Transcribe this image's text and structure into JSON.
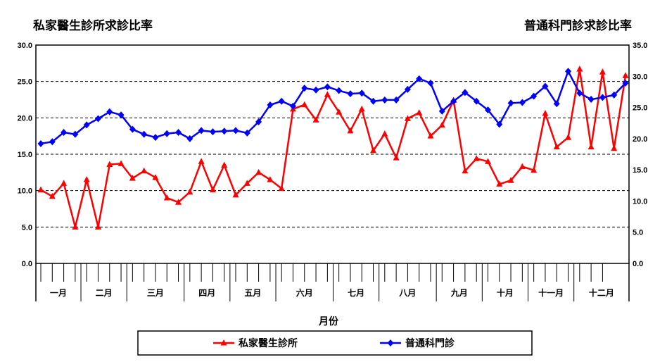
{
  "chart_data": {
    "type": "line",
    "title_left": "私家醫生診所求診比率",
    "title_right": "普通科門診求診比率",
    "xlabel": "月份",
    "left_axis": {
      "ylim": [
        0,
        30
      ],
      "ticks": [
        "0.0",
        "5.0",
        "10.0",
        "15.0",
        "20.0",
        "25.0",
        "30.0"
      ]
    },
    "right_axis": {
      "ylim": [
        0,
        35
      ],
      "ticks": [
        "0.0",
        "5.0",
        "10.0",
        "15.0",
        "20.0",
        "25.0",
        "30.0",
        "35.0"
      ]
    },
    "grid": true,
    "legend_position": "bottom",
    "months": [
      {
        "label": "一月",
        "weeks": 4
      },
      {
        "label": "二月",
        "weeks": 4
      },
      {
        "label": "三月",
        "weeks": 5
      },
      {
        "label": "四月",
        "weeks": 4
      },
      {
        "label": "五月",
        "weeks": 4
      },
      {
        "label": "六月",
        "weeks": 5
      },
      {
        "label": "七月",
        "weeks": 4
      },
      {
        "label": "八月",
        "weeks": 5
      },
      {
        "label": "九月",
        "weeks": 4
      },
      {
        "label": "十月",
        "weeks": 4
      },
      {
        "label": "十一月",
        "weeks": 4
      },
      {
        "label": "十二月",
        "weeks": 3
      }
    ],
    "series": [
      {
        "name": "私家醫生診所",
        "color": "#ff0000",
        "marker": "triangle",
        "axis": "left",
        "values": [
          10.1,
          9.2,
          11.0,
          5.0,
          11.5,
          5.0,
          13.6,
          13.7,
          11.7,
          12.7,
          11.8,
          9.0,
          8.4,
          9.8,
          14.0,
          10.1,
          13.5,
          9.4,
          11.0,
          12.5,
          11.5,
          10.3,
          21.2,
          21.8,
          19.7,
          23.2,
          20.8,
          18.2,
          21.2,
          15.5,
          17.8,
          14.5,
          19.9,
          20.7,
          17.5,
          19.0,
          22.4,
          12.7,
          14.4,
          14.0,
          10.9,
          11.4,
          13.3,
          12.8,
          20.6,
          16.0,
          17.3,
          26.7,
          16.0,
          26.3,
          15.8,
          25.8
        ]
      },
      {
        "name": "普通科門診",
        "color": "#0000ff",
        "marker": "diamond",
        "axis": "right",
        "values": [
          19.2,
          19.5,
          21.0,
          20.7,
          22.2,
          23.2,
          24.3,
          23.8,
          21.5,
          20.7,
          20.2,
          20.8,
          21.0,
          20.0,
          21.3,
          21.1,
          21.2,
          21.3,
          20.9,
          22.7,
          25.4,
          26.0,
          25.2,
          28.1,
          27.8,
          28.3,
          27.7,
          27.2,
          27.3,
          26.0,
          26.2,
          26.2,
          27.9,
          29.6,
          28.9,
          24.4,
          26.0,
          27.4,
          26.0,
          24.6,
          22.3,
          25.7,
          25.8,
          26.8,
          28.4,
          25.6,
          30.8,
          27.3,
          26.3,
          26.6,
          27.0,
          28.9
        ]
      }
    ]
  },
  "legend": {
    "items": [
      "私家醫生診所",
      "普通科門診"
    ]
  }
}
